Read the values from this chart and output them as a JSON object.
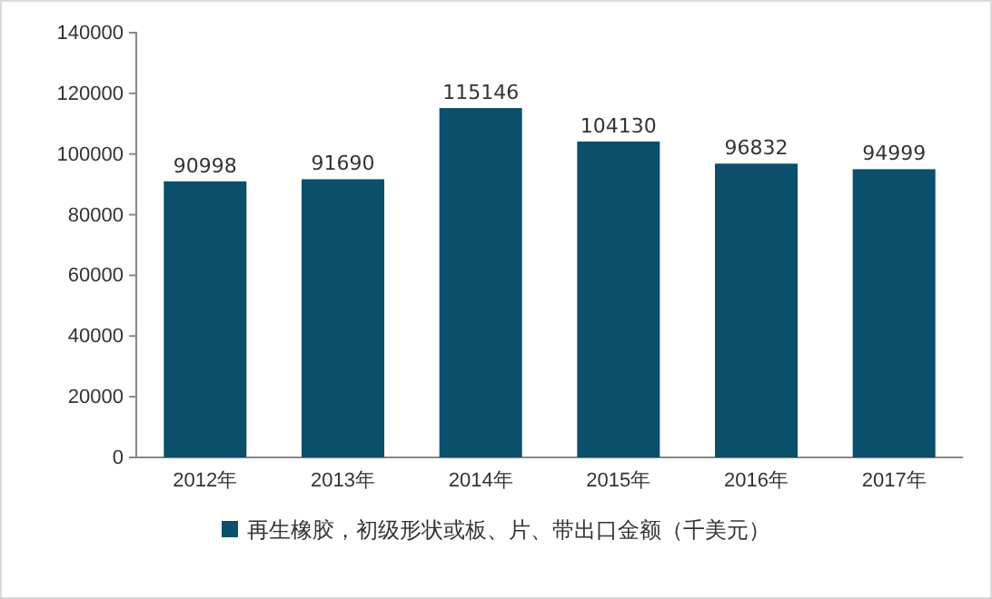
{
  "chart_data": {
    "type": "bar",
    "categories": [
      "2012年",
      "2013年",
      "2014年",
      "2015年",
      "2016年",
      "2017年"
    ],
    "series": [
      {
        "name": "再生橡胶，初级形状或板、片、带出口金额（千美元）",
        "color": "#0b4f6b",
        "values": [
          90998,
          91690,
          115146,
          104130,
          96832,
          94999
        ]
      }
    ],
    "ylim": [
      0,
      140000
    ],
    "yticks": [
      0,
      20000,
      40000,
      60000,
      80000,
      100000,
      120000,
      140000
    ],
    "data_labels": true,
    "grid": false,
    "legend": "bottom"
  }
}
